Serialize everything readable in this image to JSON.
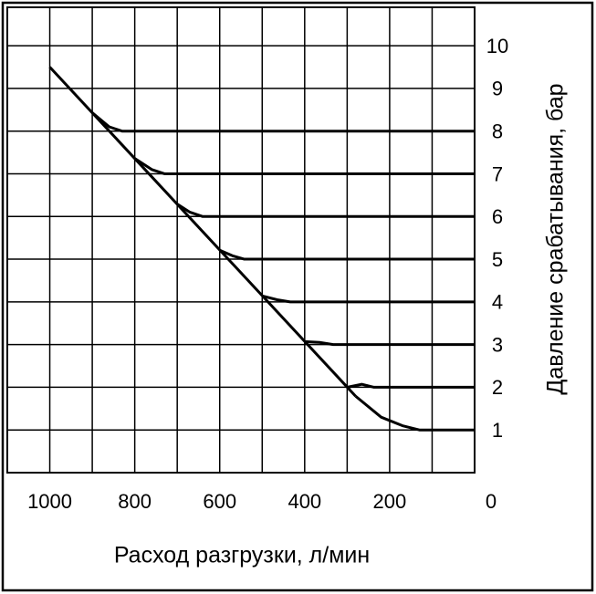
{
  "chart_data": {
    "type": "line",
    "x_label": "Расход разгрузки, л/мин",
    "y_label": "Давление срабатывания, бар",
    "xlim": [
      1100,
      0
    ],
    "ylim": [
      0,
      10.9
    ],
    "xticks": [
      1000,
      800,
      600,
      400,
      200,
      0
    ],
    "x_grid": [
      1000,
      900,
      800,
      700,
      600,
      500,
      400,
      300,
      200,
      100
    ],
    "yticks": [
      1,
      2,
      3,
      4,
      5,
      6,
      7,
      8,
      9,
      10
    ],
    "grid": true,
    "series": [
      {
        "color": "#000000",
        "x": [
          1000,
          280
        ],
        "values": [
          9.5,
          1.79
        ]
      },
      {
        "color": "#000000",
        "x": [
          0,
          830,
          860,
          900
        ],
        "values": [
          8,
          8,
          8.1,
          8.43
        ]
      },
      {
        "color": "#000000",
        "x": [
          0,
          730,
          760,
          800
        ],
        "values": [
          7,
          7,
          7.1,
          7.36
        ]
      },
      {
        "color": "#000000",
        "x": [
          0,
          640,
          670,
          700
        ],
        "values": [
          6,
          6,
          6.1,
          6.29
        ]
      },
      {
        "color": "#000000",
        "x": [
          0,
          542,
          570,
          600
        ],
        "values": [
          5,
          5,
          5.08,
          5.21
        ]
      },
      {
        "color": "#000000",
        "x": [
          0,
          434,
          465,
          500
        ],
        "values": [
          4,
          4,
          4.05,
          4.14
        ]
      },
      {
        "color": "#000000",
        "x": [
          0,
          333,
          365,
          400
        ],
        "values": [
          3,
          3,
          3.05,
          3.07
        ]
      },
      {
        "color": "#000000",
        "x": [
          0,
          237,
          265,
          300
        ],
        "values": [
          2,
          2,
          2.07,
          2.0
        ]
      },
      {
        "color": "#000000",
        "x": [
          0,
          130,
          170,
          220,
          280
        ],
        "values": [
          1,
          1,
          1.1,
          1.3,
          1.79
        ]
      }
    ]
  }
}
